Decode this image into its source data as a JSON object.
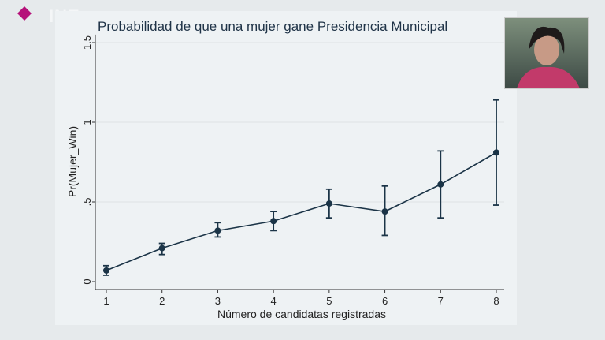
{
  "logo": {
    "text": "INE",
    "color": "#b5127a"
  },
  "chart_data": {
    "type": "line",
    "title": "Probabilidad de que una mujer gane Presidencia Municipal",
    "xlabel": "Número de candidatas registradas",
    "ylabel": "Pr(Mujer_Win)",
    "x": [
      1,
      2,
      3,
      4,
      5,
      6,
      7,
      8
    ],
    "series": [
      {
        "values": [
          0.07,
          0.21,
          0.32,
          0.38,
          0.49,
          0.44,
          0.61,
          0.81
        ],
        "ci_low": [
          0.04,
          0.17,
          0.28,
          0.32,
          0.4,
          0.29,
          0.4,
          0.48
        ],
        "ci_high": [
          0.1,
          0.24,
          0.37,
          0.44,
          0.58,
          0.6,
          0.82,
          1.14
        ],
        "color": "#1b3447"
      }
    ],
    "xticks": [
      "1",
      "2",
      "3",
      "4",
      "5",
      "6",
      "7",
      "8"
    ],
    "yticks": [
      {
        "v": 0,
        "label": "0"
      },
      {
        "v": 0.5,
        "label": ".5"
      },
      {
        "v": 1,
        "label": "1"
      },
      {
        "v": 1.5,
        "label": "1.5"
      }
    ],
    "ylim": [
      0,
      1.5
    ],
    "grid": true,
    "legend": "none"
  }
}
